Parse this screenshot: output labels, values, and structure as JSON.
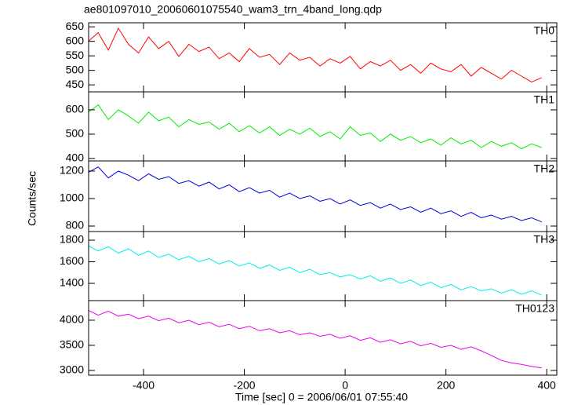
{
  "chart_data": {
    "type": "line",
    "title": "ae801097010_20060601075540_wam3_trn_4band_long.qdp",
    "xlabel": "Time [sec] 0 = 2006/06/01 07:55:40",
    "ylabel": "Counts/sec",
    "x": [
      -510,
      -490,
      -470,
      -450,
      -430,
      -410,
      -390,
      -370,
      -350,
      -330,
      -310,
      -290,
      -270,
      -250,
      -230,
      -210,
      -190,
      -170,
      -150,
      -130,
      -110,
      -90,
      -70,
      -50,
      -30,
      -10,
      10,
      30,
      50,
      70,
      90,
      110,
      130,
      150,
      170,
      190,
      210,
      230,
      250,
      270,
      290,
      310,
      330,
      350,
      370,
      390
    ],
    "xlim": [
      -509,
      420
    ],
    "xticks": [
      -400,
      -200,
      0,
      200,
      400
    ],
    "panels": [
      {
        "name": "TH0",
        "color": "#ff0000",
        "ylim": [
          426,
          664
        ],
        "yticks": [
          450,
          500,
          550,
          600,
          650
        ],
        "values": [
          600,
          630,
          570,
          645,
          590,
          560,
          615,
          575,
          600,
          548,
          590,
          565,
          580,
          540,
          560,
          530,
          575,
          545,
          555,
          520,
          560,
          535,
          545,
          515,
          540,
          525,
          548,
          505,
          530,
          515,
          535,
          500,
          520,
          490,
          525,
          505,
          495,
          520,
          480,
          510,
          490,
          470,
          500,
          480,
          460,
          475
        ]
      },
      {
        "name": "TH1",
        "color": "#00ee00",
        "ylim": [
          390,
          674
        ],
        "yticks": [
          400,
          500,
          600
        ],
        "values": [
          590,
          620,
          560,
          600,
          575,
          545,
          590,
          555,
          570,
          530,
          560,
          540,
          550,
          520,
          545,
          510,
          535,
          505,
          530,
          495,
          520,
          500,
          525,
          490,
          510,
          480,
          530,
          495,
          505,
          470,
          500,
          475,
          490,
          465,
          480,
          455,
          485,
          460,
          475,
          445,
          470,
          450,
          465,
          440,
          460,
          445
        ]
      },
      {
        "name": "TH2",
        "color": "#0000dd",
        "ylim": [
          760,
          1274
        ],
        "yticks": [
          800,
          1000,
          1200
        ],
        "values": [
          1190,
          1230,
          1150,
          1200,
          1170,
          1130,
          1180,
          1140,
          1160,
          1110,
          1130,
          1090,
          1120,
          1070,
          1100,
          1050,
          1080,
          1040,
          1060,
          1010,
          1040,
          1000,
          1020,
          980,
          1000,
          960,
          990,
          950,
          970,
          930,
          960,
          920,
          940,
          900,
          930,
          890,
          910,
          870,
          900,
          860,
          880,
          850,
          870,
          840,
          860,
          830
        ]
      },
      {
        "name": "TH3",
        "color": "#00eeee",
        "ylim": [
          1240,
          1880
        ],
        "yticks": [
          1400,
          1600,
          1800
        ],
        "values": [
          1750,
          1700,
          1740,
          1680,
          1720,
          1660,
          1700,
          1640,
          1670,
          1620,
          1650,
          1600,
          1630,
          1580,
          1610,
          1560,
          1590,
          1540,
          1570,
          1520,
          1550,
          1500,
          1530,
          1480,
          1500,
          1460,
          1480,
          1440,
          1470,
          1420,
          1450,
          1400,
          1430,
          1380,
          1410,
          1360,
          1390,
          1340,
          1370,
          1330,
          1350,
          1310,
          1340,
          1300,
          1330,
          1290
        ]
      },
      {
        "name": "TH0123",
        "color": "#ee00ee",
        "ylim": [
          2906,
          4390
        ],
        "yticks": [
          3000,
          3500,
          4000
        ],
        "values": [
          4200,
          4100,
          4180,
          4080,
          4120,
          4030,
          4080,
          3990,
          4040,
          3950,
          4000,
          3910,
          3960,
          3870,
          3920,
          3830,
          3880,
          3790,
          3830,
          3750,
          3790,
          3710,
          3750,
          3680,
          3720,
          3640,
          3690,
          3600,
          3650,
          3560,
          3610,
          3530,
          3580,
          3490,
          3540,
          3460,
          3500,
          3420,
          3470,
          3390,
          3300,
          3200,
          3150,
          3120,
          3080,
          3050
        ]
      }
    ]
  }
}
